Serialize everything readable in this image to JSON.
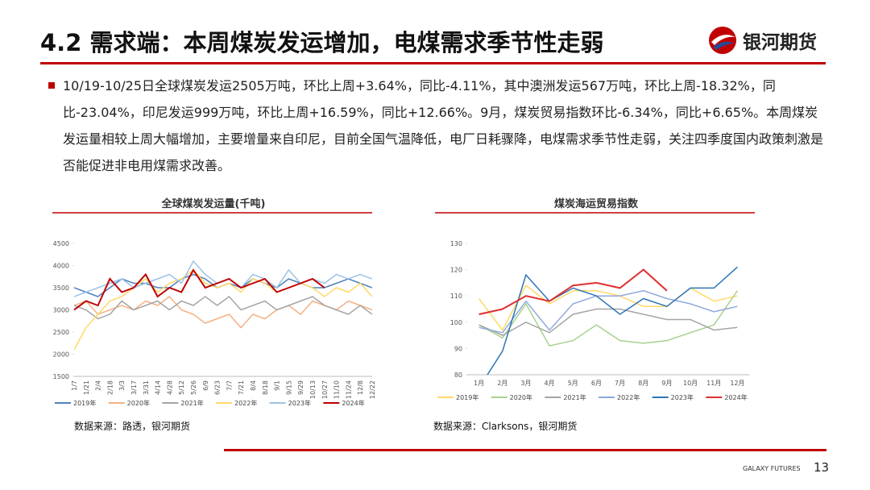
{
  "header": {
    "title": "4.2 需求端：本周煤炭发运增加，电煤需求季节性走弱",
    "logo": "银河期货"
  },
  "body_text": "10/19-10/25日全球煤炭发运2505万吨，环比上周+3.64%，同比-4.11%，其中澳洲发运567万吨，环比上周-18.32%，同比-23.04%，印尼发运999万吨，环比上周+16.59%，同比+12.66%。9月，煤炭贸易指数环比-6.34%，同比+6.65%。本周煤炭发运量相较上周大幅增加，主要增量来自印尼，目前全国气温降低，电厂日耗骤降，电煤需求季节性走弱，关注四季度国内政策刺激是否能促进非电用煤需求改善。",
  "chart_data": [
    {
      "type": "line",
      "title": "全球煤炭发运量(千吨)",
      "categories": [
        "1/7",
        "1/21",
        "2/4",
        "2/18",
        "3/3",
        "3/17",
        "3/31",
        "4/14",
        "4/28",
        "5/12",
        "5/26",
        "6/9",
        "6/23",
        "7/7",
        "7/21",
        "8/4",
        "8/18",
        "9/1",
        "9/15",
        "9/29",
        "10/13",
        "10/27",
        "11/10",
        "11/24",
        "12/8",
        "12/22"
      ],
      "ylim": [
        1500,
        4500
      ],
      "yticks": [
        1500,
        2000,
        2500,
        3000,
        3500,
        4000,
        4500
      ],
      "series": [
        {
          "name": "2019年",
          "color": "#4f81bd",
          "values": [
            3500,
            3400,
            3300,
            3500,
            3700,
            3600,
            3600,
            3500,
            3500,
            3700,
            3800,
            3700,
            3500,
            3600,
            3500,
            3700,
            3600,
            3500,
            3700,
            3600,
            3500,
            3500,
            3600,
            3700,
            3600,
            3500
          ]
        },
        {
          "name": "2020年",
          "color": "#f4b183",
          "values": [
            3100,
            3200,
            2900,
            3000,
            3100,
            3000,
            3200,
            3100,
            3300,
            3000,
            2900,
            2700,
            2800,
            2900,
            2600,
            2900,
            2800,
            3000,
            3100,
            2900,
            3200,
            3100,
            3000,
            3200,
            3100,
            3000
          ]
        },
        {
          "name": "2021年",
          "color": "#a5a5a5",
          "values": [
            3100,
            3000,
            2800,
            2900,
            3200,
            3000,
            3100,
            3200,
            3000,
            3200,
            3100,
            3300,
            3100,
            3300,
            3000,
            3100,
            3200,
            3000,
            3100,
            3200,
            3300,
            3100,
            3000,
            2900,
            3100,
            2900
          ]
        },
        {
          "name": "2022年",
          "color": "#ffd966",
          "values": [
            2100,
            2600,
            2900,
            3200,
            3300,
            3500,
            3700,
            3400,
            3600,
            3700,
            3900,
            3600,
            3500,
            3600,
            3400,
            3700,
            3600,
            3400,
            3500,
            3600,
            3500,
            3300,
            3500,
            3400,
            3600,
            3300
          ]
        },
        {
          "name": "2023年",
          "color": "#9dc3e6",
          "values": [
            3300,
            3400,
            3500,
            3600,
            3700,
            3500,
            3600,
            3700,
            3800,
            3600,
            4100,
            3800,
            3600,
            3700,
            3500,
            3800,
            3700,
            3500,
            3900,
            3600,
            3700,
            3600,
            3800,
            3700,
            3800,
            3700
          ]
        },
        {
          "name": "2024年",
          "color": "#c00000",
          "values": [
            3000,
            3200,
            3100,
            3700,
            3400,
            3500,
            3800,
            3300,
            3500,
            3400,
            3900,
            3500,
            3600,
            3700,
            3500,
            3600,
            3700,
            3400,
            3500,
            3600,
            3700,
            3500,
            null,
            null,
            null,
            null
          ]
        }
      ]
    },
    {
      "type": "line",
      "title": "煤炭海运贸易指数",
      "categories": [
        "1月",
        "2月",
        "3月",
        "4月",
        "5月",
        "6月",
        "7月",
        "8月",
        "9月",
        "10月",
        "11月",
        "12月"
      ],
      "ylim": [
        80,
        130
      ],
      "yticks": [
        80,
        90,
        100,
        110,
        120,
        130
      ],
      "series": [
        {
          "name": "2019年",
          "color": "#ffd966",
          "values": [
            109,
            97,
            114,
            107,
            112,
            112,
            110,
            106,
            106,
            113,
            108,
            110
          ]
        },
        {
          "name": "2020年",
          "color": "#a9d18e",
          "values": [
            99,
            94,
            107,
            91,
            93,
            99,
            93,
            92,
            93,
            96,
            99,
            112
          ]
        },
        {
          "name": "2021年",
          "color": "#a5a5a5",
          "values": [
            99,
            95,
            100,
            96,
            103,
            105,
            105,
            103,
            101,
            101,
            97,
            98
          ]
        },
        {
          "name": "2022年",
          "color": "#8faadc",
          "values": [
            98,
            96,
            108,
            97,
            107,
            110,
            110,
            112,
            109,
            107,
            104,
            106
          ]
        },
        {
          "name": "2023年",
          "color": "#2e75b6",
          "values": [
            75,
            89,
            118,
            108,
            113,
            110,
            103,
            109,
            106,
            113,
            113,
            121
          ]
        },
        {
          "name": "2024年",
          "color": "#e03030",
          "values": [
            103,
            105,
            110,
            108,
            114,
            115,
            113,
            120,
            112,
            null,
            null,
            null
          ]
        }
      ]
    }
  ],
  "sources": [
    "数据来源：路透，银河期货",
    "数据来源：Clarksons，银河期货"
  ],
  "footer": {
    "brand": "GALAXY FUTURES",
    "page": "13"
  }
}
